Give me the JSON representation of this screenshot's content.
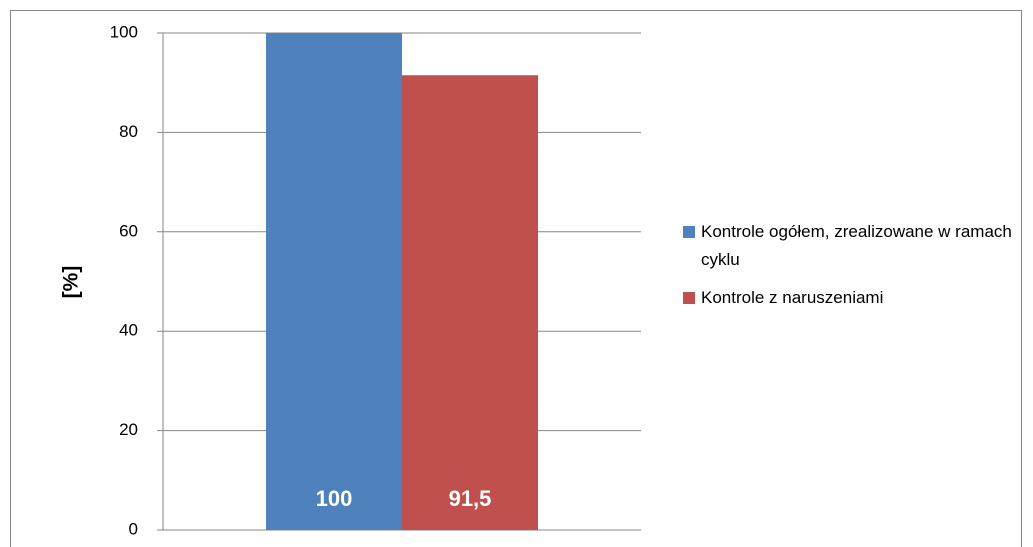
{
  "chart_data": {
    "type": "bar",
    "categories": [
      null
    ],
    "series": [
      {
        "name": "Kontrole ogółem, zrealizowane w ramach cyklu",
        "color": "#4f81bd",
        "values": [
          100
        ],
        "value_labels": [
          "100"
        ]
      },
      {
        "name": "Kontrole z naruszeniami",
        "color": "#c0504d",
        "values": [
          91.5
        ],
        "value_labels": [
          "91,5"
        ]
      }
    ],
    "y_label": "[%]",
    "ylim": [
      0,
      100
    ],
    "yticks": [
      0,
      20,
      40,
      60,
      80,
      100
    ],
    "grid": true,
    "legend": "right"
  }
}
